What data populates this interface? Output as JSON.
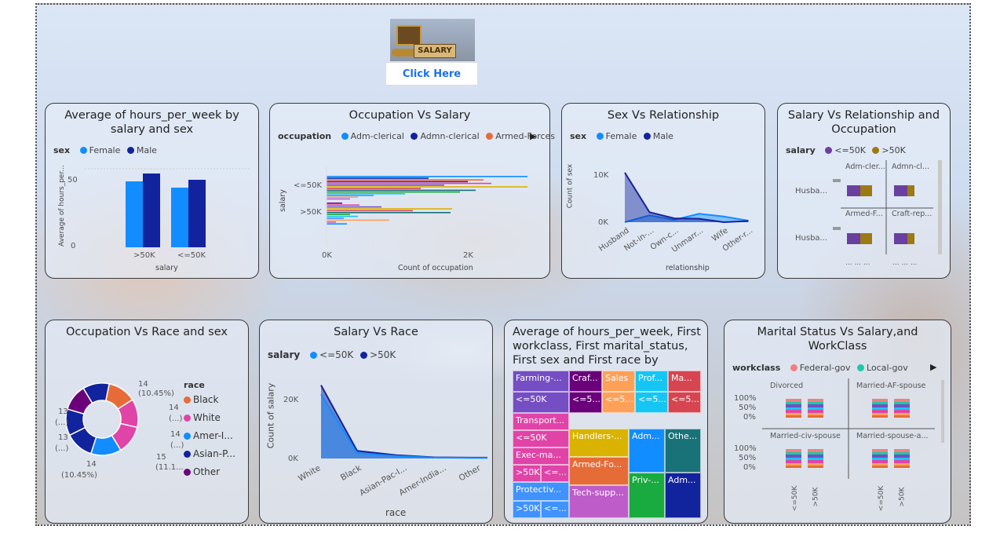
{
  "header": {
    "logo_text": "SALARY",
    "button_label": "Click Here"
  },
  "colors": {
    "female": "#118DFF",
    "male": "#12239E",
    "lte50k": "#6B3FA0",
    "gt50k": "#9C7A13",
    "black": "#E66C37",
    "white": "#E044A7",
    "amer": "#118DFF",
    "asian": "#12239E",
    "other": "#6B007B"
  },
  "card1": {
    "title": "Average of hours_per_week by salary and sex",
    "legend_title": "sex",
    "legend": [
      "Female",
      "Male"
    ],
    "ylabel": "Average of hours_per...",
    "xlabel": "salary",
    "yticks": [
      "50",
      "0"
    ],
    "chart_data": {
      "type": "bar",
      "categories": [
        ">50K",
        "<=50K"
      ],
      "series": [
        {
          "name": "Female",
          "values": [
            42,
            38
          ]
        },
        {
          "name": "Male",
          "values": [
            47,
            43
          ]
        }
      ],
      "ylim": [
        0,
        60
      ]
    }
  },
  "card2": {
    "title": "Occupation Vs Salary",
    "legend_title": "occupation",
    "legend": [
      "Adm-clerical",
      "Admn-clerical",
      "Armed-Forces"
    ],
    "ylabel": "salary",
    "xlabel": "Count of occupation",
    "categories": [
      "<=50K",
      ">50K"
    ],
    "xticks": [
      "0K",
      "2K"
    ]
  },
  "card3": {
    "title": "Sex Vs Relationship",
    "legend_title": "sex",
    "legend": [
      "Female",
      "Male"
    ],
    "ylabel": "Count of sex",
    "xlabel": "relationship",
    "yticks": [
      "10K",
      "0K"
    ],
    "chart_data": {
      "type": "area",
      "categories": [
        "Husband",
        "Not-in-...",
        "Own-c...",
        "Unmarr...",
        "Wife",
        "Other-r..."
      ],
      "series": [
        {
          "name": "Female",
          "values": [
            0,
            1800,
            600,
            2200,
            1500,
            400
          ]
        },
        {
          "name": "Male",
          "values": [
            13000,
            2600,
            1000,
            900,
            0,
            300
          ]
        }
      ],
      "ylim": [
        0,
        14000
      ]
    }
  },
  "card4": {
    "title": "Salary Vs Relationship and Occupation",
    "legend_title": "salary",
    "legend": [
      "<=50K",
      ">50K"
    ],
    "row_labels": [
      "Husba...",
      "Husba..."
    ],
    "col_labels": [
      "Adm-cler...",
      "Admn-cl...",
      "Armed-F...",
      "Craft-rep..."
    ],
    "ellipsis": "...  ...  ..."
  },
  "card5": {
    "title": "Occupation Vs Race and sex",
    "legend_title": "race",
    "legend": [
      "Black",
      "White",
      "Amer-I...",
      "Asian-P...",
      "Other"
    ],
    "labels": [
      "14",
      "(10.45%)",
      "14",
      "(...)",
      "14",
      "(...)",
      "15",
      "(11.1...",
      "14",
      "(10.45%)",
      "13",
      "(...)",
      "13",
      "(...)"
    ]
  },
  "card6": {
    "title": "Salary Vs Race",
    "legend_title": "salary",
    "legend": [
      "<=50K",
      ">50K"
    ],
    "ylabel": "Count of salary",
    "xlabel": "race",
    "yticks": [
      "20K",
      "0K"
    ],
    "chart_data": {
      "type": "area",
      "categories": [
        "White",
        "Black",
        "Asian-Pac-I...",
        "Amer-India...",
        "Other"
      ],
      "series": [
        {
          "name": "<=50K",
          "values": [
            21000,
            1800,
            800,
            300,
            200
          ]
        },
        {
          "name": ">50K",
          "values": [
            24000,
            2500,
            1100,
            400,
            300
          ]
        }
      ],
      "ylim": [
        0,
        27000
      ]
    }
  },
  "card7": {
    "title": "Average of hours_per_week, First workclass, First marital_status, First sex and First race by occup...",
    "cells": [
      "Farming-...",
      "<=50K",
      "Craf...",
      "Sales",
      "Prof...",
      "Ma...",
      "<=5...",
      "<=5...",
      "<=5...",
      "<=5...",
      "Transport...",
      "<=50K",
      "Exec-ma...",
      ">50K",
      "<=...",
      "Handlers-...",
      "Adm...",
      "Othe...",
      "Armed-Fo...",
      "Protectiv...",
      ">50K",
      "<=...",
      "Tech-supp...",
      "Priv-...",
      "Adm..."
    ]
  },
  "card8": {
    "title": "Marital Status Vs Salary,and WorkClass",
    "legend_title": "workclass",
    "legend": [
      "Federal-gov",
      "Local-gov"
    ],
    "panels": [
      "Divorced",
      "Married-AF-spouse",
      "Married-civ-spouse",
      "Married-spouse-a..."
    ],
    "yticks": [
      "100%",
      "50%",
      "0%"
    ],
    "xticks": [
      "<=50K",
      ">50K",
      "<=50K",
      ">50K"
    ]
  }
}
